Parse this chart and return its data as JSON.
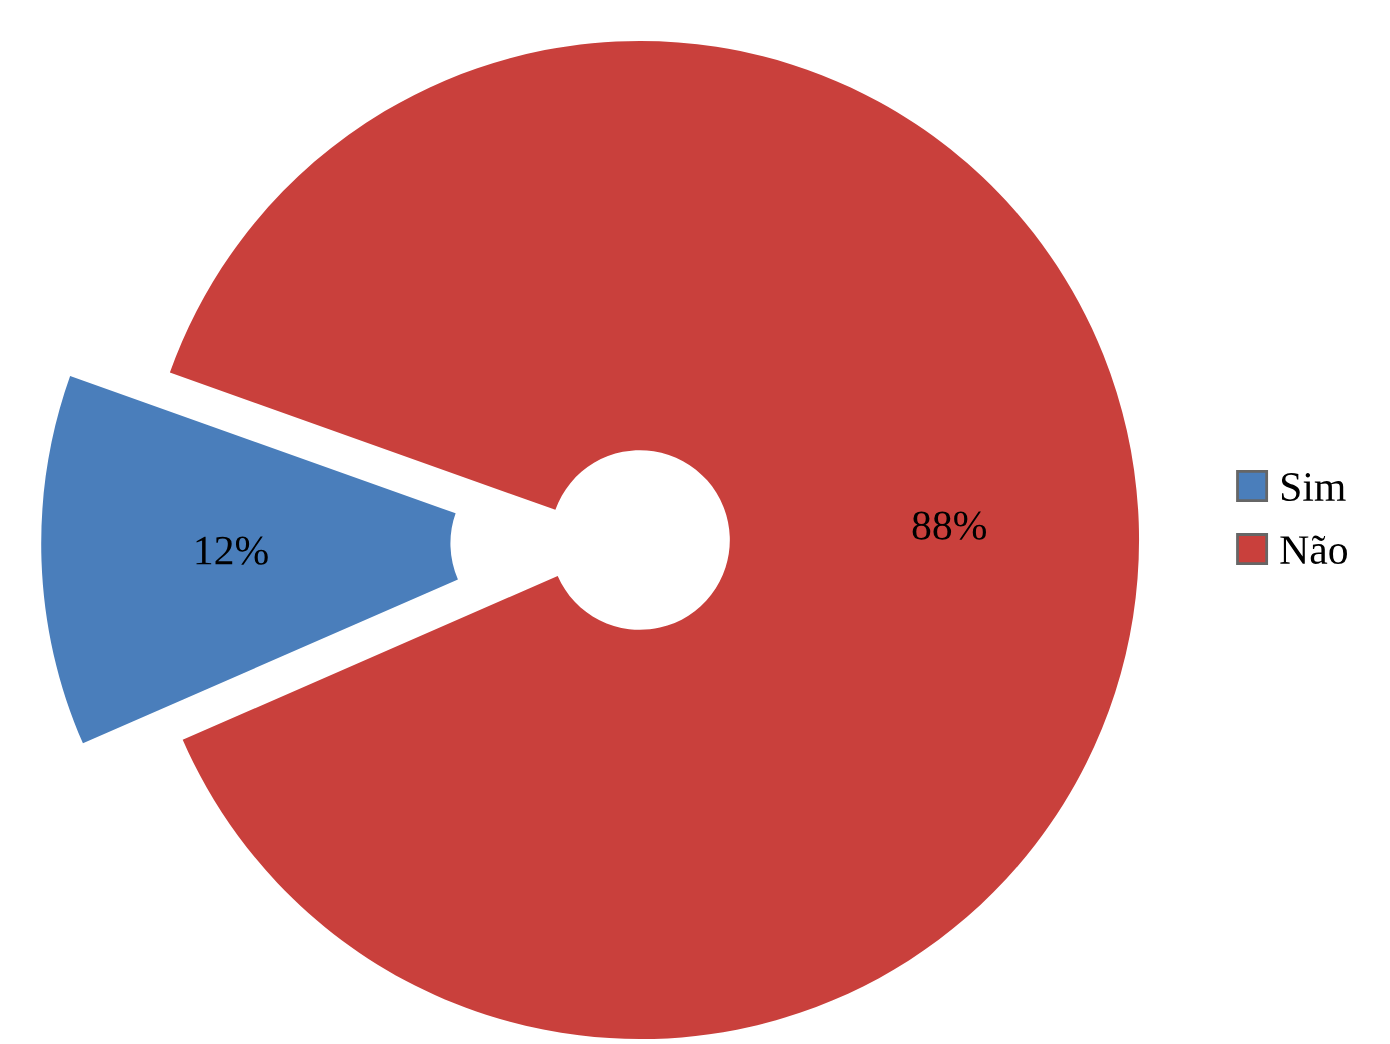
{
  "chart_data": {
    "type": "donut",
    "categories": [
      "Sim",
      "Não"
    ],
    "values": [
      12,
      88
    ],
    "colors": [
      "#4a7ebb",
      "#c9403c"
    ],
    "value_labels": [
      "12%",
      "88%"
    ],
    "legend": "right"
  }
}
